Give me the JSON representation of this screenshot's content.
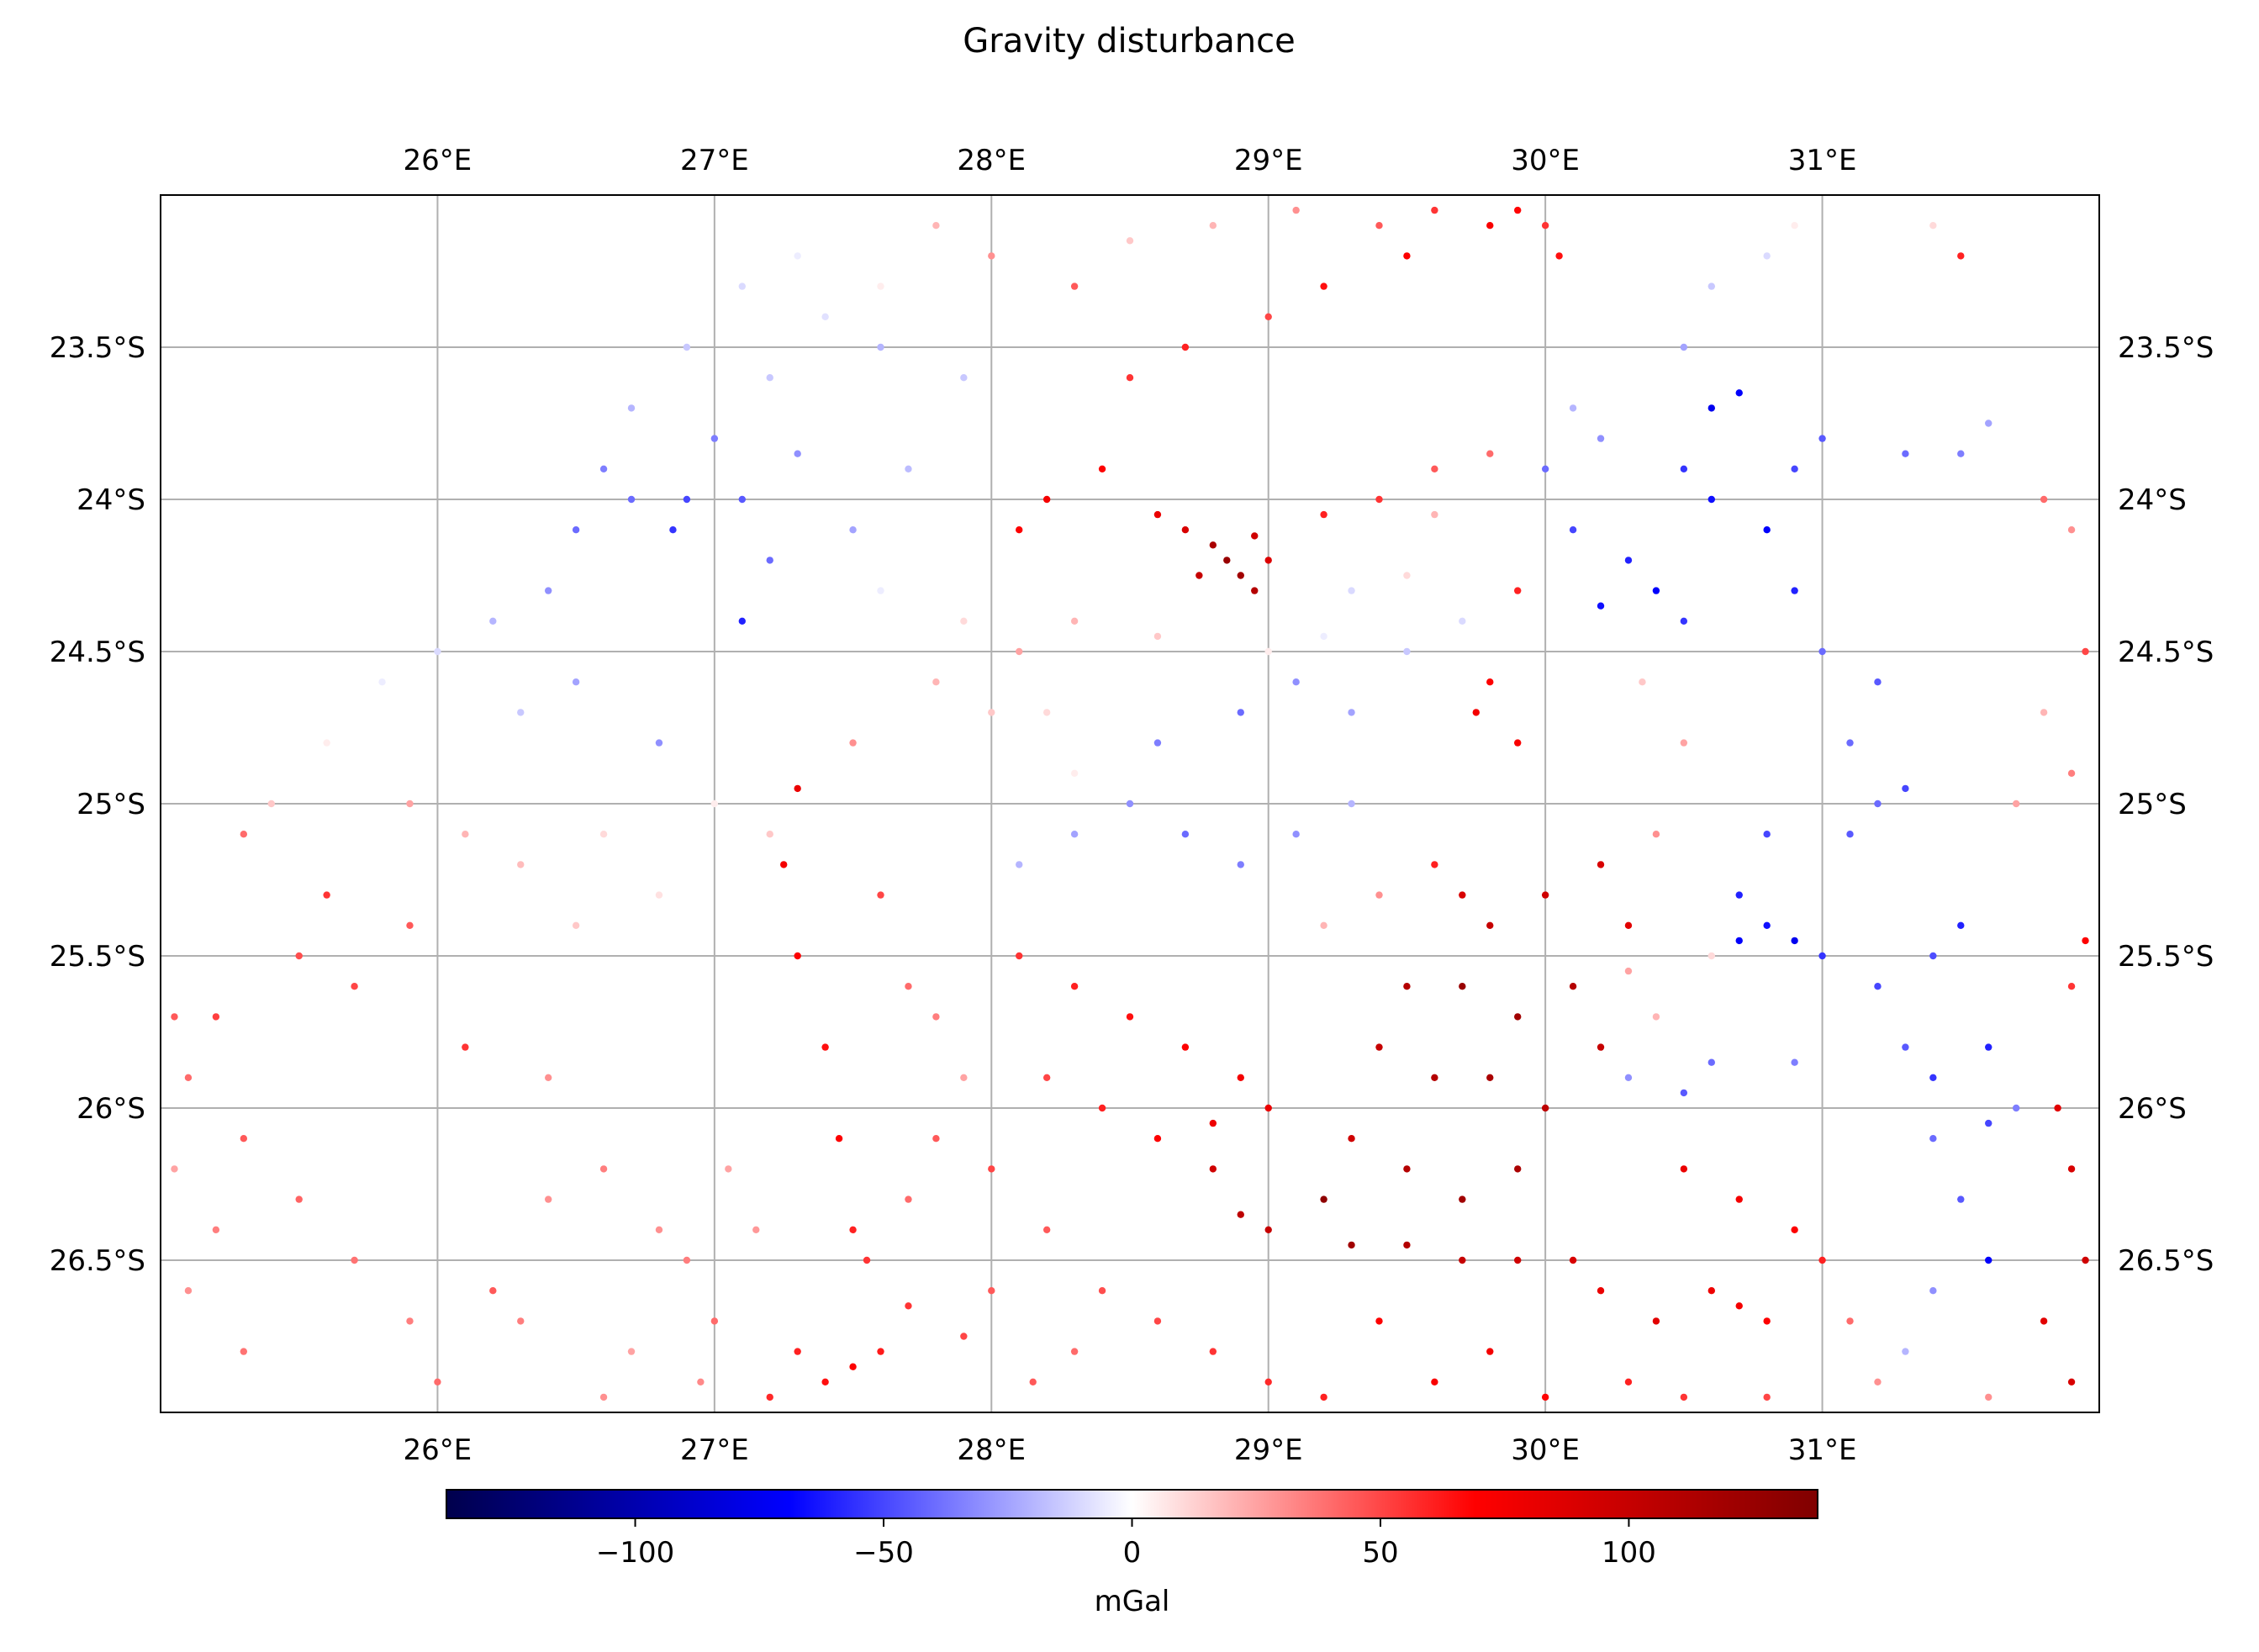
{
  "chart_data": {
    "type": "scatter",
    "title": "Gravity disturbance",
    "xlabel": "",
    "ylabel": "",
    "xlim": [
      25.0,
      32.0
    ],
    "ylim": [
      -27.0,
      -23.0
    ],
    "x_ticks": [
      {
        "value": 26,
        "label": "26°E"
      },
      {
        "value": 27,
        "label": "27°E"
      },
      {
        "value": 28,
        "label": "28°E"
      },
      {
        "value": 29,
        "label": "29°E"
      },
      {
        "value": 30,
        "label": "30°E"
      },
      {
        "value": 31,
        "label": "31°E"
      }
    ],
    "y_ticks": [
      {
        "value": -23.5,
        "label": "23.5°S"
      },
      {
        "value": -24.0,
        "label": "24°S"
      },
      {
        "value": -24.5,
        "label": "24.5°S"
      },
      {
        "value": -25.0,
        "label": "25°S"
      },
      {
        "value": -25.5,
        "label": "25.5°S"
      },
      {
        "value": -26.0,
        "label": "26°S"
      },
      {
        "value": -26.5,
        "label": "26.5°S"
      }
    ],
    "tick_labels_on": [
      "top",
      "bottom",
      "left",
      "right"
    ],
    "grid": true,
    "colormap": "seismic",
    "colorbar": {
      "label": "mGal",
      "orientation": "horizontal",
      "placement": "bottom",
      "vmin": -138,
      "vmax": 138,
      "ticks": [
        {
          "value": -100,
          "label": "−100"
        },
        {
          "value": -50,
          "label": "−50"
        },
        {
          "value": 0,
          "label": "0"
        },
        {
          "value": 50,
          "label": "50"
        },
        {
          "value": 100,
          "label": "100"
        }
      ],
      "colors": {
        "min": "#00004c",
        "low": "#0000ff",
        "mid": "#ffffff",
        "high": "#ff0000",
        "max": "#800000"
      }
    },
    "points": [
      [
        28.85,
        -24.2,
        125
      ],
      [
        28.9,
        -24.25,
        120
      ],
      [
        28.8,
        -24.15,
        115
      ],
      [
        28.95,
        -24.3,
        110
      ],
      [
        28.75,
        -24.25,
        100
      ],
      [
        28.7,
        -24.1,
        90
      ],
      [
        28.95,
        -24.12,
        95
      ],
      [
        29.0,
        -24.2,
        88
      ],
      [
        28.6,
        -24.05,
        80
      ],
      [
        28.4,
        -23.9,
        70
      ],
      [
        28.2,
        -24.0,
        75
      ],
      [
        28.1,
        -24.1,
        70
      ],
      [
        29.2,
        -24.05,
        60
      ],
      [
        29.4,
        -24.0,
        55
      ],
      [
        29.6,
        -23.9,
        45
      ],
      [
        29.8,
        -23.85,
        40
      ],
      [
        28.5,
        -23.6,
        55
      ],
      [
        28.7,
        -23.5,
        60
      ],
      [
        29.0,
        -23.4,
        50
      ],
      [
        29.2,
        -23.3,
        65
      ],
      [
        29.5,
        -23.2,
        70
      ],
      [
        29.8,
        -23.1,
        72
      ],
      [
        29.9,
        -23.05,
        68
      ],
      [
        28.3,
        -23.3,
        45
      ],
      [
        28.0,
        -23.2,
        30
      ],
      [
        27.8,
        -23.1,
        20
      ],
      [
        27.6,
        -23.3,
        5
      ],
      [
        27.4,
        -23.4,
        -8
      ],
      [
        27.2,
        -23.6,
        -15
      ],
      [
        27.0,
        -23.8,
        -35
      ],
      [
        26.9,
        -24.0,
        -50
      ],
      [
        26.85,
        -24.1,
        -55
      ],
      [
        27.1,
        -24.0,
        -45
      ],
      [
        27.3,
        -23.85,
        -30
      ],
      [
        27.2,
        -24.2,
        -40
      ],
      [
        27.1,
        -24.4,
        -60
      ],
      [
        27.5,
        -24.1,
        -25
      ],
      [
        27.7,
        -23.9,
        -18
      ],
      [
        27.9,
        -23.6,
        -15
      ],
      [
        27.6,
        -23.5,
        -20
      ],
      [
        26.5,
        -24.1,
        -40
      ],
      [
        26.4,
        -24.3,
        -30
      ],
      [
        26.2,
        -24.4,
        -20
      ],
      [
        26.0,
        -24.5,
        -10
      ],
      [
        26.5,
        -24.6,
        -25
      ],
      [
        26.8,
        -24.8,
        -30
      ],
      [
        26.3,
        -24.7,
        -15
      ],
      [
        25.8,
        -24.6,
        -5
      ],
      [
        25.6,
        -24.8,
        5
      ],
      [
        25.4,
        -25.0,
        15
      ],
      [
        25.3,
        -25.1,
        40
      ],
      [
        25.6,
        -25.3,
        55
      ],
      [
        25.9,
        -25.4,
        45
      ],
      [
        25.7,
        -25.6,
        50
      ],
      [
        25.5,
        -25.5,
        48
      ],
      [
        25.2,
        -25.7,
        52
      ],
      [
        25.1,
        -25.9,
        40
      ],
      [
        25.3,
        -26.1,
        45
      ],
      [
        25.5,
        -26.3,
        42
      ],
      [
        25.7,
        -26.5,
        38
      ],
      [
        25.9,
        -26.7,
        35
      ],
      [
        26.0,
        -26.9,
        40
      ],
      [
        26.2,
        -26.6,
        45
      ],
      [
        26.1,
        -25.8,
        55
      ],
      [
        26.4,
        -25.9,
        30
      ],
      [
        26.6,
        -26.2,
        35
      ],
      [
        26.8,
        -26.4,
        30
      ],
      [
        26.7,
        -26.8,
        25
      ],
      [
        26.5,
        -25.4,
        15
      ],
      [
        26.8,
        -25.3,
        8
      ],
      [
        26.6,
        -25.1,
        10
      ],
      [
        26.3,
        -25.2,
        18
      ],
      [
        27.0,
        -25.0,
        5
      ],
      [
        27.2,
        -25.1,
        15
      ],
      [
        27.3,
        -24.95,
        80
      ],
      [
        27.25,
        -25.2,
        75
      ],
      [
        27.3,
        -25.5,
        70
      ],
      [
        27.4,
        -25.8,
        65
      ],
      [
        27.45,
        -26.1,
        70
      ],
      [
        27.5,
        -26.4,
        60
      ],
      [
        27.55,
        -26.5,
        55
      ],
      [
        27.7,
        -26.3,
        40
      ],
      [
        27.8,
        -26.1,
        45
      ],
      [
        27.6,
        -25.3,
        50
      ],
      [
        27.7,
        -25.6,
        40
      ],
      [
        27.8,
        -25.7,
        35
      ],
      [
        27.9,
        -25.9,
        25
      ],
      [
        27.5,
        -24.8,
        30
      ],
      [
        27.8,
        -24.6,
        20
      ],
      [
        28.0,
        -24.7,
        15
      ],
      [
        28.2,
        -24.7,
        10
      ],
      [
        28.3,
        -24.9,
        5
      ],
      [
        27.3,
        -26.8,
        60
      ],
      [
        27.4,
        -26.9,
        65
      ],
      [
        27.5,
        -26.85,
        70
      ],
      [
        27.6,
        -26.8,
        62
      ],
      [
        27.2,
        -26.95,
        58
      ],
      [
        27.0,
        -26.7,
        40
      ],
      [
        26.9,
        -26.5,
        35
      ],
      [
        28.0,
        -26.2,
        50
      ],
      [
        28.2,
        -26.4,
        45
      ],
      [
        28.4,
        -26.6,
        48
      ],
      [
        28.6,
        -26.7,
        50
      ],
      [
        28.8,
        -26.8,
        55
      ],
      [
        29.0,
        -26.9,
        58
      ],
      [
        29.2,
        -26.95,
        60
      ],
      [
        28.1,
        -25.5,
        55
      ],
      [
        28.3,
        -25.6,
        60
      ],
      [
        28.5,
        -25.7,
        65
      ],
      [
        28.7,
        -25.8,
        70
      ],
      [
        28.9,
        -25.9,
        75
      ],
      [
        28.2,
        -25.9,
        50
      ],
      [
        28.4,
        -26.0,
        60
      ],
      [
        28.6,
        -26.1,
        70
      ],
      [
        28.8,
        -26.05,
        78
      ],
      [
        29.0,
        -26.0,
        80
      ],
      [
        28.1,
        -25.2,
        -20
      ],
      [
        28.3,
        -25.1,
        -25
      ],
      [
        28.5,
        -25.0,
        -30
      ],
      [
        28.7,
        -25.1,
        -40
      ],
      [
        28.9,
        -25.2,
        -35
      ],
      [
        29.1,
        -25.1,
        -30
      ],
      [
        29.3,
        -25.0,
        -20
      ],
      [
        28.6,
        -24.8,
        -35
      ],
      [
        28.9,
        -24.7,
        -40
      ],
      [
        29.1,
        -24.6,
        -30
      ],
      [
        29.3,
        -24.7,
        -25
      ],
      [
        29.5,
        -24.5,
        -15
      ],
      [
        29.7,
        -24.4,
        -10
      ],
      [
        29.8,
        -24.6,
        70
      ],
      [
        29.75,
        -24.7,
        75
      ],
      [
        29.9,
        -24.8,
        72
      ],
      [
        29.9,
        -24.3,
        60
      ],
      [
        29.2,
        -25.4,
        20
      ],
      [
        29.4,
        -25.3,
        30
      ],
      [
        29.6,
        -25.2,
        60
      ],
      [
        29.7,
        -25.3,
        90
      ],
      [
        29.8,
        -25.4,
        100
      ],
      [
        30.0,
        -25.3,
        95
      ],
      [
        30.2,
        -25.2,
        90
      ],
      [
        30.3,
        -25.4,
        85
      ],
      [
        29.5,
        -25.6,
        110
      ],
      [
        29.7,
        -25.6,
        125
      ],
      [
        29.9,
        -25.7,
        120
      ],
      [
        30.1,
        -25.6,
        110
      ],
      [
        30.2,
        -25.8,
        100
      ],
      [
        29.4,
        -25.8,
        100
      ],
      [
        29.6,
        -25.9,
        110
      ],
      [
        29.8,
        -25.9,
        115
      ],
      [
        30.0,
        -26.0,
        105
      ],
      [
        29.3,
        -26.1,
        95
      ],
      [
        29.5,
        -26.2,
        110
      ],
      [
        29.7,
        -26.3,
        120
      ],
      [
        29.9,
        -26.2,
        115
      ],
      [
        29.2,
        -26.3,
        130
      ],
      [
        29.3,
        -26.45,
        120
      ],
      [
        29.5,
        -26.45,
        110
      ],
      [
        29.7,
        -26.5,
        100
      ],
      [
        29.9,
        -26.5,
        95
      ],
      [
        30.1,
        -26.5,
        90
      ],
      [
        28.9,
        -26.35,
        105
      ],
      [
        29.0,
        -26.4,
        100
      ],
      [
        28.8,
        -26.2,
        95
      ],
      [
        30.2,
        -26.6,
        80
      ],
      [
        30.4,
        -26.7,
        85
      ],
      [
        30.6,
        -26.6,
        78
      ],
      [
        30.7,
        -26.65,
        75
      ],
      [
        30.8,
        -26.7,
        70
      ],
      [
        30.3,
        -26.9,
        60
      ],
      [
        30.5,
        -26.95,
        55
      ],
      [
        30.8,
        -26.95,
        50
      ],
      [
        29.8,
        -26.8,
        75
      ],
      [
        29.6,
        -26.9,
        72
      ],
      [
        29.4,
        -26.7,
        70
      ],
      [
        30.0,
        -26.95,
        68
      ],
      [
        30.5,
        -26.2,
        80
      ],
      [
        30.7,
        -26.3,
        75
      ],
      [
        30.9,
        -26.4,
        70
      ],
      [
        31.0,
        -26.5,
        60
      ],
      [
        31.1,
        -26.7,
        40
      ],
      [
        31.2,
        -26.9,
        30
      ],
      [
        31.3,
        -26.8,
        -20
      ],
      [
        31.4,
        -26.6,
        -30
      ],
      [
        31.5,
        -26.3,
        -45
      ],
      [
        31.6,
        -26.5,
        -70
      ],
      [
        31.4,
        -26.1,
        -40
      ],
      [
        31.6,
        -26.05,
        -50
      ],
      [
        31.7,
        -26.0,
        -35
      ],
      [
        31.3,
        -25.8,
        -45
      ],
      [
        31.4,
        -25.9,
        -55
      ],
      [
        31.6,
        -25.8,
        -60
      ],
      [
        31.0,
        -25.5,
        -55
      ],
      [
        31.2,
        -25.6,
        -50
      ],
      [
        31.4,
        -25.5,
        -48
      ],
      [
        31.5,
        -25.4,
        -60
      ],
      [
        30.7,
        -25.45,
        -70
      ],
      [
        30.8,
        -25.4,
        -65
      ],
      [
        30.9,
        -25.45,
        -75
      ],
      [
        30.7,
        -25.3,
        -60
      ],
      [
        30.8,
        -25.1,
        -50
      ],
      [
        31.1,
        -25.1,
        -45
      ],
      [
        31.2,
        -25.0,
        -40
      ],
      [
        31.3,
        -24.95,
        -50
      ],
      [
        31.1,
        -24.8,
        -40
      ],
      [
        31.2,
        -24.6,
        -45
      ],
      [
        31.0,
        -24.5,
        -40
      ],
      [
        30.9,
        -24.3,
        -60
      ],
      [
        30.8,
        -24.1,
        -70
      ],
      [
        30.6,
        -24.0,
        -65
      ],
      [
        30.5,
        -23.9,
        -55
      ],
      [
        30.6,
        -23.7,
        -75
      ],
      [
        30.7,
        -23.65,
        -70
      ],
      [
        30.9,
        -23.9,
        -50
      ],
      [
        31.0,
        -23.8,
        -45
      ],
      [
        31.3,
        -23.85,
        -40
      ],
      [
        31.5,
        -23.85,
        -35
      ],
      [
        31.6,
        -23.75,
        -25
      ],
      [
        30.3,
        -24.2,
        -60
      ],
      [
        30.4,
        -24.3,
        -70
      ],
      [
        30.5,
        -24.4,
        -55
      ],
      [
        30.2,
        -24.35,
        -65
      ],
      [
        30.1,
        -24.1,
        -50
      ],
      [
        30.0,
        -23.9,
        -40
      ],
      [
        30.2,
        -23.8,
        -30
      ],
      [
        30.1,
        -23.7,
        -20
      ],
      [
        30.5,
        -23.5,
        -25
      ],
      [
        30.6,
        -23.3,
        -15
      ],
      [
        30.8,
        -23.2,
        -10
      ],
      [
        30.9,
        -23.1,
        5
      ],
      [
        31.4,
        -23.1,
        10
      ],
      [
        31.5,
        -23.2,
        60
      ],
      [
        30.0,
        -23.1,
        55
      ],
      [
        30.05,
        -23.2,
        65
      ],
      [
        31.8,
        -24.0,
        40
      ],
      [
        31.9,
        -24.1,
        30
      ],
      [
        31.95,
        -24.5,
        50
      ],
      [
        31.8,
        -24.7,
        20
      ],
      [
        31.9,
        -24.9,
        35
      ],
      [
        31.7,
        -25.0,
        25
      ],
      [
        31.95,
        -25.45,
        70
      ],
      [
        31.9,
        -25.6,
        55
      ],
      [
        31.85,
        -26.0,
        85
      ],
      [
        31.9,
        -26.2,
        90
      ],
      [
        31.95,
        -26.5,
        95
      ],
      [
        31.8,
        -26.7,
        85
      ],
      [
        31.9,
        -26.9,
        90
      ],
      [
        31.6,
        -26.95,
        30
      ],
      [
        30.3,
        -25.9,
        -30
      ],
      [
        30.5,
        -25.95,
        -45
      ],
      [
        30.6,
        -25.85,
        -40
      ],
      [
        30.9,
        -25.85,
        -35
      ],
      [
        30.4,
        -25.7,
        20
      ],
      [
        30.3,
        -25.55,
        25
      ],
      [
        30.6,
        -25.5,
        10
      ],
      [
        30.4,
        -25.1,
        30
      ],
      [
        30.5,
        -24.8,
        25
      ],
      [
        30.35,
        -24.6,
        15
      ],
      [
        29.6,
        -24.05,
        20
      ],
      [
        29.5,
        -24.25,
        10
      ],
      [
        29.3,
        -24.3,
        -10
      ],
      [
        29.2,
        -24.45,
        -5
      ],
      [
        29.0,
        -24.5,
        5
      ],
      [
        28.6,
        -24.45,
        15
      ],
      [
        28.3,
        -24.4,
        20
      ],
      [
        28.1,
        -24.5,
        25
      ],
      [
        27.9,
        -24.4,
        10
      ],
      [
        27.6,
        -24.3,
        -5
      ],
      [
        28.5,
        -23.15,
        15
      ],
      [
        28.8,
        -23.1,
        20
      ],
      [
        29.1,
        -23.05,
        30
      ],
      [
        29.4,
        -23.1,
        45
      ],
      [
        29.6,
        -23.05,
        55
      ],
      [
        27.3,
        -23.2,
        -5
      ],
      [
        27.1,
        -23.3,
        -10
      ],
      [
        26.9,
        -23.5,
        -15
      ],
      [
        26.7,
        -23.7,
        -20
      ],
      [
        26.6,
        -23.9,
        -35
      ],
      [
        26.7,
        -24.0,
        -40
      ],
      [
        25.9,
        -25.0,
        25
      ],
      [
        26.1,
        -25.1,
        20
      ],
      [
        25.2,
        -26.4,
        35
      ],
      [
        25.1,
        -26.6,
        30
      ],
      [
        25.3,
        -26.8,
        38
      ],
      [
        25.05,
        -26.2,
        25
      ],
      [
        25.05,
        -25.7,
        45
      ],
      [
        28.0,
        -26.6,
        45
      ],
      [
        28.3,
        -26.8,
        40
      ],
      [
        27.7,
        -26.65,
        55
      ],
      [
        27.9,
        -26.75,
        50
      ],
      [
        28.15,
        -26.9,
        45
      ],
      [
        26.4,
        -26.3,
        30
      ],
      [
        26.3,
        -26.7,
        35
      ],
      [
        26.6,
        -26.95,
        30
      ],
      [
        26.95,
        -26.9,
        32
      ],
      [
        27.05,
        -26.2,
        25
      ],
      [
        27.15,
        -26.4,
        28
      ]
    ]
  }
}
